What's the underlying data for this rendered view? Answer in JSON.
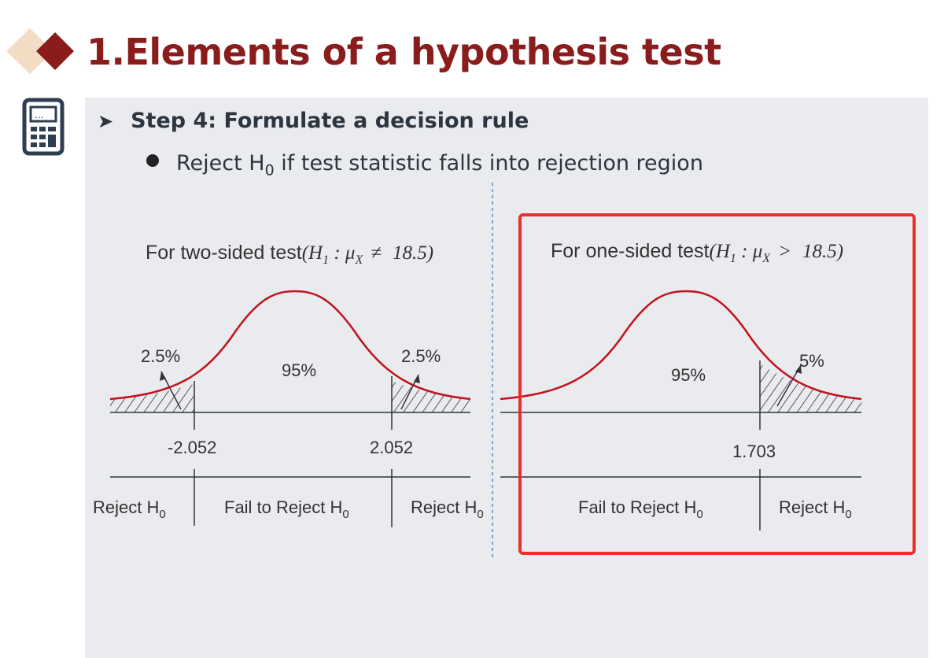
{
  "title": "1.Elements of a hypothesis test",
  "step": "Step 4: Formulate a decision rule",
  "bullet": {
    "pre": "Reject H",
    "sub": "0",
    "post": " if test statistic falls into rejection region"
  },
  "two_sided": {
    "heading_text": "For two-sided test",
    "formula": {
      "H": "H",
      "H_sub": "1",
      "mu": "μ",
      "mu_sub": "X",
      "op": "≠",
      "value": "18.5"
    },
    "left_tail_pct": "2.5%",
    "center_pct": "95%",
    "right_tail_pct": "2.5%",
    "left_critical": "-2.052",
    "right_critical": "2.052",
    "regions": [
      {
        "label": "Reject H",
        "sub": "0"
      },
      {
        "label": "Fail to Reject H",
        "sub": "0"
      },
      {
        "label": "Reject H",
        "sub": "0"
      }
    ]
  },
  "one_sided": {
    "heading_text": "For one-sided test",
    "formula": {
      "H": "H",
      "H_sub": "1",
      "mu": "μ",
      "mu_sub": "X",
      "op": ">",
      "value": "18.5"
    },
    "center_pct": "95%",
    "tail_pct": "5%",
    "critical": "1.703",
    "regions": [
      {
        "label": "Fail to Reject H",
        "sub": "0"
      },
      {
        "label": "Reject H",
        "sub": "0"
      }
    ]
  },
  "colors": {
    "title": "#8b1c1c",
    "curve": "#c0141c",
    "highlight_box": "#e8302a",
    "panel": "#e9ebee",
    "divider": "#5a8fb5",
    "icon": "#2e3d4f"
  },
  "icons": [
    "diamond-icon",
    "calculator-icon",
    "arrow-bullet-icon",
    "bullet-dot-icon"
  ]
}
